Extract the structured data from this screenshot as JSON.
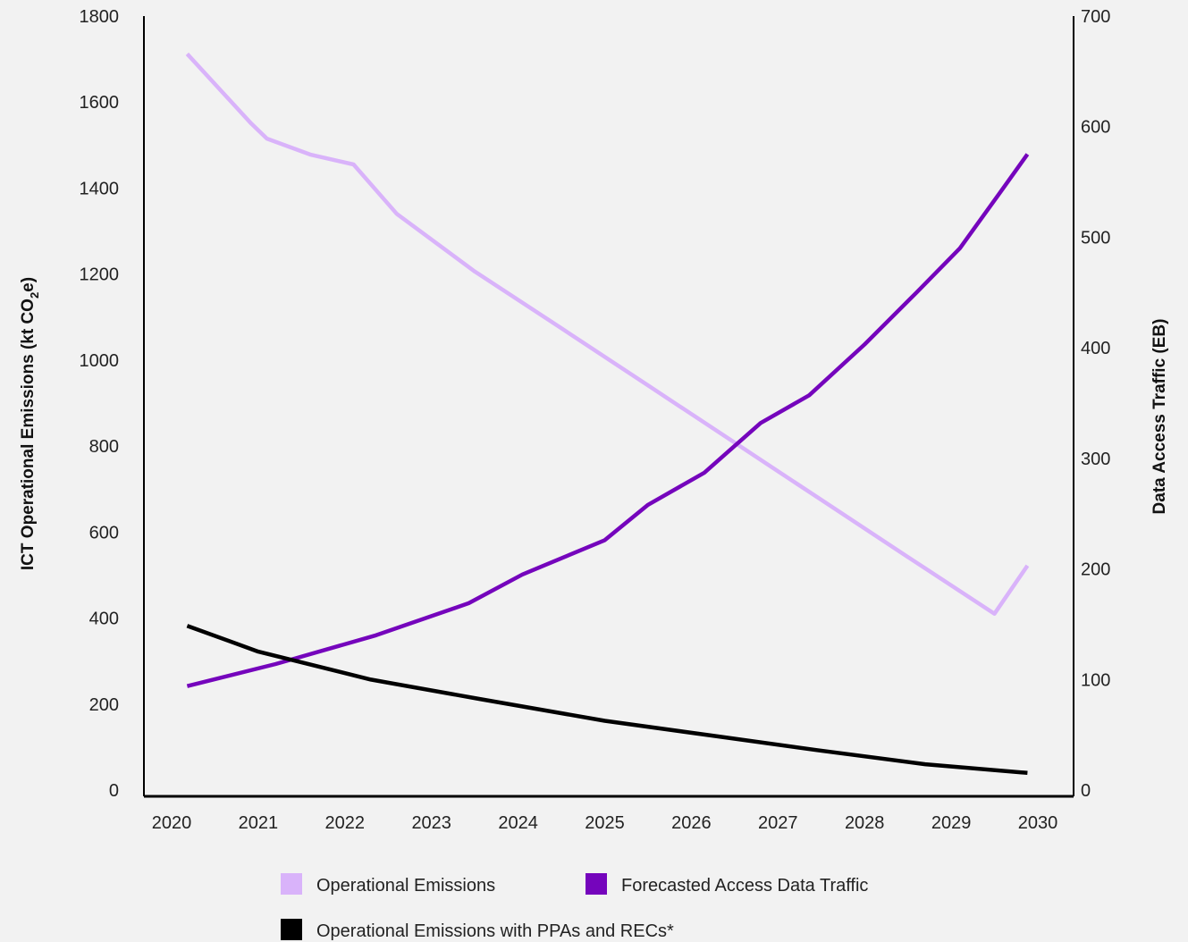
{
  "chart_data": {
    "type": "line",
    "x_ticks": [
      "2020",
      "2021",
      "2022",
      "2023",
      "2024",
      "2025",
      "2026",
      "2027",
      "2028",
      "2029",
      "2030"
    ],
    "y_left": {
      "label_main": "ICT Operational Emissions (kt CO",
      "label_sub": "2",
      "label_end": "e)",
      "ylim": [
        0,
        1800
      ],
      "ticks": [
        "0",
        "200",
        "400",
        "600",
        "800",
        "1000",
        "1200",
        "1400",
        "1600",
        "1800"
      ]
    },
    "y_right": {
      "label": "Data Access Traffic (EB)",
      "ylim": [
        0,
        700
      ],
      "ticks": [
        "0",
        "100",
        "200",
        "300",
        "400",
        "500",
        "600",
        "700"
      ]
    },
    "series": [
      {
        "name": "Operational Emissions",
        "axis": "left",
        "color": "#d9b3fa",
        "points": [
          [
            2020.18,
            1712
          ],
          [
            2020.92,
            1550
          ],
          [
            2021.1,
            1515
          ],
          [
            2021.6,
            1478
          ],
          [
            2022.1,
            1455
          ],
          [
            2022.6,
            1340
          ],
          [
            2023.5,
            1206
          ],
          [
            2024.5,
            1074
          ],
          [
            2025.5,
            941
          ],
          [
            2026.5,
            808
          ],
          [
            2027.5,
            675
          ],
          [
            2028.5,
            542
          ],
          [
            2029.5,
            410
          ],
          [
            2029.88,
            522
          ]
        ]
      },
      {
        "name": "Forecasted Access Data Traffic",
        "axis": "right",
        "color": "#7505bc",
        "points": [
          [
            2020.18,
            94
          ],
          [
            2021.2,
            114
          ],
          [
            2022.36,
            140
          ],
          [
            2023.43,
            169
          ],
          [
            2024.05,
            195
          ],
          [
            2025.0,
            226
          ],
          [
            2025.5,
            258
          ],
          [
            2026.15,
            287
          ],
          [
            2026.8,
            332
          ],
          [
            2027.36,
            357
          ],
          [
            2028.0,
            403
          ],
          [
            2028.6,
            450
          ],
          [
            2029.1,
            490
          ],
          [
            2029.57,
            541
          ],
          [
            2029.88,
            575
          ]
        ]
      },
      {
        "name": "Operational Emissions with PPAs and RECs*",
        "axis": "left",
        "color": "#000000",
        "points": [
          [
            2020.18,
            382
          ],
          [
            2021.0,
            322
          ],
          [
            2022.3,
            257
          ],
          [
            2023.55,
            212
          ],
          [
            2025.0,
            161
          ],
          [
            2026.3,
            125
          ],
          [
            2027.45,
            93
          ],
          [
            2028.7,
            60
          ],
          [
            2029.88,
            40
          ]
        ]
      }
    ]
  },
  "legend": [
    {
      "label": "Operational Emissions",
      "color": "#d9b3fa"
    },
    {
      "label": "Forecasted Access Data Traffic",
      "color": "#7505bc"
    },
    {
      "label": "Operational Emissions with PPAs and RECs*",
      "color": "#000000"
    }
  ]
}
